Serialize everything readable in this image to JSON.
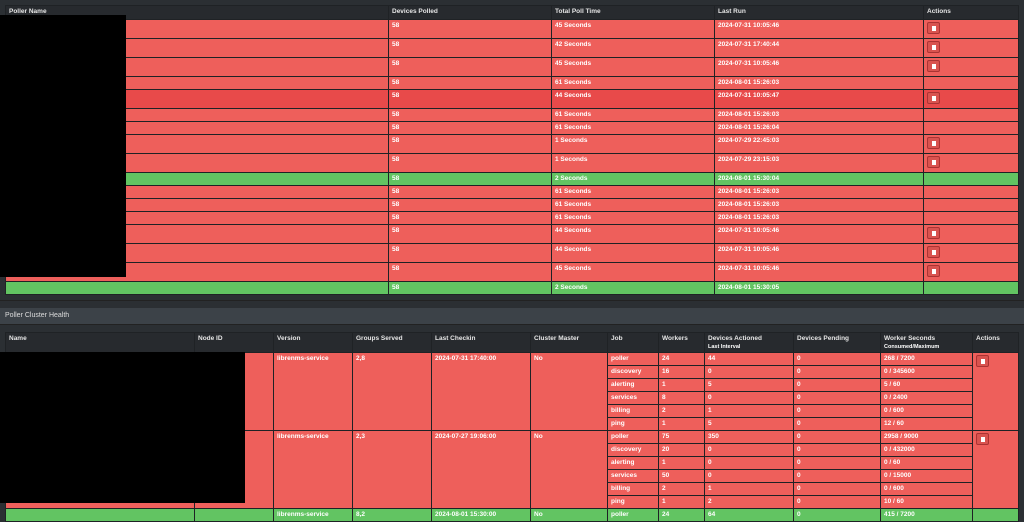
{
  "pollers": {
    "headers": [
      "Poller Name",
      "Devices Polled",
      "Total Poll Time",
      "Last Run",
      "Actions"
    ],
    "rows": [
      {
        "devices": "58",
        "time": "45 Seconds",
        "last_run": "2024-07-31 10:05:46",
        "status": "red",
        "delete": true
      },
      {
        "devices": "58",
        "time": "42 Seconds",
        "last_run": "2024-07-31 17:40:44",
        "status": "red",
        "delete": true
      },
      {
        "devices": "58",
        "time": "45 Seconds",
        "last_run": "2024-07-31 10:05:46",
        "status": "red",
        "delete": true
      },
      {
        "devices": "58",
        "time": "61 Seconds",
        "last_run": "2024-08-01 15:26:03",
        "status": "red",
        "delete": false
      },
      {
        "devices": "58",
        "time": "44 Seconds",
        "last_run": "2024-07-31 10:05:47",
        "status": "red-dark",
        "delete": true
      },
      {
        "devices": "58",
        "time": "61 Seconds",
        "last_run": "2024-08-01 15:26:03",
        "status": "red",
        "delete": false
      },
      {
        "devices": "58",
        "time": "61 Seconds",
        "last_run": "2024-08-01 15:26:04",
        "status": "red",
        "delete": false
      },
      {
        "devices": "58",
        "time": "1 Seconds",
        "last_run": "2024-07-29 22:45:03",
        "status": "red",
        "delete": true
      },
      {
        "devices": "58",
        "time": "1 Seconds",
        "last_run": "2024-07-29 23:15:03",
        "status": "red",
        "delete": true
      },
      {
        "devices": "58",
        "time": "2 Seconds",
        "last_run": "2024-08-01 15:30:04",
        "status": "green",
        "delete": false
      },
      {
        "devices": "58",
        "time": "61 Seconds",
        "last_run": "2024-08-01 15:26:03",
        "status": "red",
        "delete": false
      },
      {
        "devices": "58",
        "time": "61 Seconds",
        "last_run": "2024-08-01 15:26:03",
        "status": "red",
        "delete": false
      },
      {
        "devices": "58",
        "time": "61 Seconds",
        "last_run": "2024-08-01 15:26:03",
        "status": "red",
        "delete": false
      },
      {
        "devices": "58",
        "time": "44 Seconds",
        "last_run": "2024-07-31 10:05:46",
        "status": "red",
        "delete": true
      },
      {
        "devices": "58",
        "time": "44 Seconds",
        "last_run": "2024-07-31 10:05:46",
        "status": "red",
        "delete": true
      },
      {
        "devices": "58",
        "time": "45 Seconds",
        "last_run": "2024-07-31 10:05:46",
        "status": "red",
        "delete": true
      },
      {
        "devices": "58",
        "time": "2 Seconds",
        "last_run": "2024-08-01 15:30:05",
        "status": "green",
        "delete": false
      }
    ]
  },
  "cluster": {
    "title": "Poller Cluster Health",
    "headers": [
      "Name",
      "Node ID",
      "Version",
      "Groups Served",
      "Last Checkin",
      "Cluster Master",
      "Job",
      "Workers",
      "Devices Actioned",
      "Devices Pending",
      "Worker Seconds",
      "Actions"
    ],
    "subheaders": {
      "devices_actioned": "Last Interval",
      "worker_seconds": "Consumed/Maximum"
    },
    "nodes": [
      {
        "version": "librenms-service",
        "groups": "2,8",
        "checkin": "2024-07-31 17:40:00",
        "master": "No",
        "status": "red",
        "delete": true,
        "jobs": [
          [
            "poller",
            "24",
            "44",
            "0",
            "268 / 7200"
          ],
          [
            "discovery",
            "16",
            "0",
            "0",
            "0 / 345600"
          ],
          [
            "alerting",
            "1",
            "5",
            "0",
            "5 / 60"
          ],
          [
            "services",
            "8",
            "0",
            "0",
            "0 / 2400"
          ],
          [
            "billing",
            "2",
            "1",
            "0",
            "0 / 600"
          ],
          [
            "ping",
            "1",
            "5",
            "0",
            "12 / 60"
          ]
        ]
      },
      {
        "version": "librenms-service",
        "groups": "2,3",
        "checkin": "2024-07-27 19:06:00",
        "master": "No",
        "status": "red",
        "delete": true,
        "jobs": [
          [
            "poller",
            "75",
            "350",
            "0",
            "2958 / 9000"
          ],
          [
            "discovery",
            "20",
            "0",
            "0",
            "0 / 432000"
          ],
          [
            "alerting",
            "1",
            "0",
            "0",
            "0 / 60"
          ],
          [
            "services",
            "50",
            "0",
            "0",
            "0 / 15000"
          ],
          [
            "billing",
            "2",
            "1",
            "0",
            "0 / 600"
          ],
          [
            "ping",
            "1",
            "2",
            "0",
            "10 / 60"
          ]
        ]
      },
      {
        "version": "librenms-service",
        "groups": "8,2",
        "checkin": "2024-08-01 15:30:00",
        "master": "No",
        "status": "green",
        "delete": false,
        "jobs": [
          [
            "poller",
            "24",
            "64",
            "0",
            "415 / 7200"
          ]
        ]
      }
    ]
  },
  "colors": {
    "red": "#ee5f5b",
    "red_dark": "#e84a4a",
    "green": "#62c462",
    "header": "#272a2e"
  }
}
